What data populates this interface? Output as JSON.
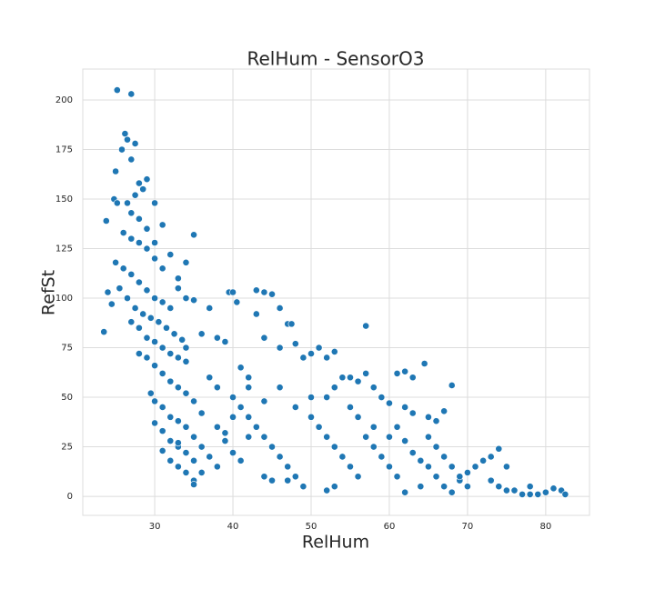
{
  "chart_data": {
    "type": "scatter",
    "title": "RelHum - SensorO3",
    "x_label": "RelHum",
    "y_label": "RefSt",
    "color": "#1f77b4",
    "grid": true,
    "xlim": [
      20.8,
      85.6
    ],
    "ylim": [
      -9.6,
      215.6
    ],
    "xticks": [
      30,
      40,
      50,
      60,
      70,
      80
    ],
    "yticks": [
      0,
      25,
      50,
      75,
      100,
      125,
      150,
      175,
      200
    ],
    "x": [
      25.2,
      27,
      26.2,
      26.5,
      27.5,
      25.8,
      27,
      25,
      28,
      29,
      28.5,
      24.8,
      25.2,
      26.5,
      27.5,
      30,
      31,
      23.8,
      26,
      27,
      28,
      29,
      30,
      25,
      26,
      27,
      28,
      29,
      30,
      31,
      32,
      24,
      24.5,
      25.5,
      26.5,
      27.5,
      28.5,
      29.5,
      30.5,
      31.5,
      32.5,
      33.5,
      34,
      23.5,
      27,
      28,
      29,
      30,
      31,
      32,
      33,
      34,
      28,
      29,
      30,
      31,
      32,
      33,
      34,
      35,
      29.5,
      30,
      31,
      32,
      33,
      34,
      35,
      30,
      31,
      32,
      33,
      34,
      35,
      31,
      32,
      33,
      34,
      35,
      35,
      33,
      36,
      36,
      37,
      36,
      37,
      38,
      39,
      39.5,
      40,
      40.5,
      41,
      42,
      43,
      44,
      45,
      43,
      46,
      47,
      47.5,
      44,
      46,
      48,
      49,
      50,
      51,
      52,
      53,
      54,
      55,
      56,
      57,
      57,
      58,
      59,
      60,
      61,
      62,
      63,
      64.5,
      62,
      63,
      65,
      66,
      67,
      68,
      38,
      40,
      41,
      42,
      43,
      44,
      45,
      46,
      47,
      48,
      49,
      38,
      39,
      40,
      41,
      42,
      44,
      45,
      47,
      50,
      51,
      52,
      53,
      54,
      55,
      56,
      57,
      58,
      59,
      60,
      61,
      62,
      52,
      53,
      55,
      56,
      58,
      60,
      61,
      62,
      63,
      64,
      65,
      66,
      67,
      68,
      69,
      70,
      64,
      65,
      66,
      67,
      68,
      69,
      70,
      71,
      72,
      73,
      74,
      75,
      73,
      74,
      75,
      76,
      77,
      78,
      79,
      80,
      81,
      82,
      82.5,
      78,
      52,
      53,
      36,
      37,
      38,
      39,
      40,
      42,
      44,
      46,
      48,
      50,
      35,
      33,
      34,
      33,
      32,
      31,
      30,
      29,
      28,
      27,
      34,
      35
    ],
    "y": [
      205,
      203,
      183,
      180,
      178,
      175,
      170,
      164,
      158,
      160,
      155,
      150,
      148,
      148,
      152,
      148,
      137,
      139,
      133,
      130,
      128,
      125,
      120,
      118,
      115,
      112,
      108,
      104,
      100,
      98,
      95,
      103,
      97,
      105,
      100,
      95,
      92,
      90,
      88,
      85,
      82,
      79,
      75,
      83,
      88,
      85,
      80,
      78,
      75,
      72,
      70,
      68,
      72,
      70,
      66,
      62,
      58,
      55,
      52,
      48,
      52,
      48,
      45,
      40,
      38,
      35,
      30,
      37,
      33,
      28,
      25,
      22,
      18,
      23,
      18,
      15,
      12,
      8,
      6,
      27,
      25,
      42,
      60,
      82,
      95,
      80,
      78,
      103,
      103,
      98,
      65,
      60,
      104,
      103,
      102,
      92,
      95,
      87,
      87,
      80,
      75,
      77,
      70,
      72,
      75,
      70,
      73,
      60,
      60,
      58,
      86,
      62,
      55,
      50,
      47,
      62,
      63,
      60,
      67,
      45,
      42,
      40,
      38,
      43,
      56,
      55,
      50,
      45,
      40,
      35,
      30,
      25,
      20,
      15,
      10,
      5,
      35,
      28,
      22,
      18,
      30,
      10,
      8,
      8,
      40,
      35,
      30,
      25,
      20,
      15,
      10,
      30,
      25,
      20,
      15,
      10,
      2,
      50,
      55,
      45,
      40,
      35,
      30,
      35,
      28,
      22,
      18,
      15,
      10,
      5,
      2,
      8,
      12,
      5,
      30,
      25,
      20,
      15,
      10,
      5,
      15,
      18,
      20,
      24,
      15,
      8,
      5,
      3,
      3,
      1,
      1,
      1,
      2,
      4,
      3,
      1,
      5,
      3,
      5,
      12,
      20,
      15,
      32,
      40,
      55,
      48,
      55,
      45,
      50,
      132,
      105,
      100,
      110,
      122,
      115,
      128,
      135,
      140,
      143,
      118,
      99
    ]
  }
}
